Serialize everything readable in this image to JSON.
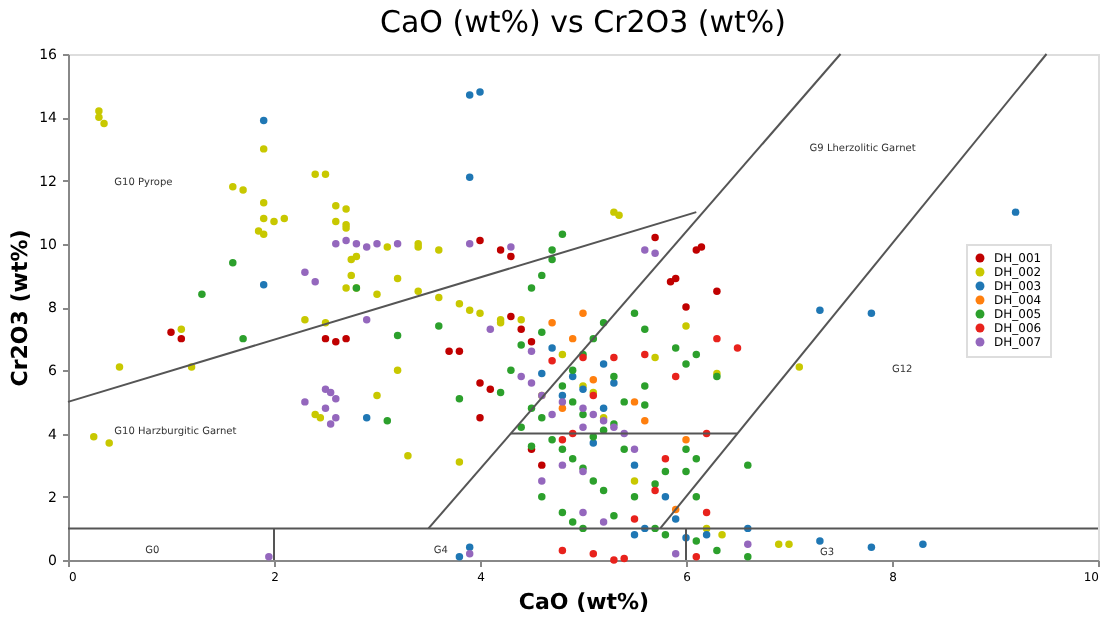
{
  "chart_data": {
    "type": "scatter",
    "title": "CaO (wt%) vs Cr2O3 (wt%)",
    "xlabel": "CaO (wt%)",
    "ylabel": "Cr2O3 (wt%)",
    "xlim": [
      0,
      10
    ],
    "ylim": [
      0,
      16
    ],
    "xticks": [
      0,
      2,
      4,
      6,
      8,
      10
    ],
    "yticks": [
      0,
      2,
      4,
      6,
      8,
      10,
      12,
      14,
      16
    ],
    "grid": false,
    "legend": "right",
    "marker": "circle",
    "annotations": [
      "G10 Pyrope",
      "G10 Harzburgitic Garnet",
      "G9 Lherzolitic Garnet",
      "G12",
      "G0",
      "G4",
      "G3"
    ],
    "series": [
      {
        "name": "DH_001",
        "color": "#c00000",
        "x": [
          1.0,
          1.1,
          2.5,
          2.6,
          2.7,
          4.0,
          4.2,
          4.3,
          5.7,
          6.1,
          6.15,
          5.9,
          5.85,
          6.3,
          6.0,
          4.3,
          4.4,
          4.5,
          3.7,
          3.8,
          4.0,
          4.1,
          4.0,
          4.5,
          4.6
        ],
        "values": [
          7.2,
          7.0,
          7.0,
          6.9,
          7.0,
          10.1,
          9.8,
          9.6,
          10.2,
          9.8,
          9.9,
          8.9,
          8.8,
          8.5,
          8.0,
          7.7,
          7.3,
          6.9,
          6.6,
          6.6,
          5.6,
          5.4,
          4.5,
          3.5,
          3.0
        ]
      },
      {
        "name": "DH_002",
        "color": "#c8c800",
        "x": [
          0.3,
          0.3,
          0.35,
          1.6,
          1.7,
          1.9,
          2.0,
          2.1,
          1.85,
          1.9,
          1.9,
          1.9,
          2.4,
          2.5,
          2.6,
          2.7,
          2.7,
          2.6,
          2.7,
          2.75,
          2.75,
          2.7,
          2.8,
          2.8,
          3.1,
          3.4,
          3.4,
          3.6,
          3.2,
          3.0,
          3.4,
          3.6,
          3.8,
          3.9,
          4.0,
          4.2,
          4.2,
          4.4,
          0.5,
          1.2,
          1.1,
          2.3,
          2.5,
          2.4,
          2.45,
          3.0,
          3.2,
          3.3,
          3.8,
          5.3,
          5.35,
          0.25,
          0.4,
          6.0,
          5.7,
          5.5,
          6.3,
          7.1,
          6.2,
          6.35,
          6.9,
          7.0,
          5.0,
          5.1,
          4.8,
          5.2,
          4.6
        ],
        "values": [
          14.2,
          14.0,
          13.8,
          11.8,
          11.7,
          10.8,
          10.7,
          10.8,
          10.4,
          10.3,
          11.3,
          13.0,
          12.2,
          12.2,
          11.2,
          11.1,
          10.6,
          10.7,
          10.5,
          9.5,
          9.0,
          8.6,
          8.6,
          9.6,
          9.9,
          10.0,
          9.9,
          9.8,
          8.9,
          8.4,
          8.5,
          8.3,
          8.1,
          7.9,
          7.8,
          7.6,
          7.5,
          7.6,
          6.1,
          6.1,
          7.3,
          7.6,
          7.5,
          4.6,
          4.5,
          5.2,
          6.0,
          3.3,
          3.1,
          11.0,
          10.9,
          3.9,
          3.7,
          7.4,
          6.4,
          2.5,
          5.9,
          6.1,
          1.0,
          0.8,
          0.5,
          0.5,
          5.5,
          5.3,
          6.5,
          4.5,
          5.2
        ]
      },
      {
        "name": "DH_003",
        "color": "#1f77b4",
        "x": [
          1.9,
          3.9,
          4.0,
          3.9,
          1.9,
          4.9,
          4.8,
          5.0,
          5.3,
          5.1,
          5.5,
          5.8,
          5.6,
          5.9,
          5.5,
          6.6,
          7.3,
          7.8,
          9.2,
          8.3,
          7.8,
          7.3,
          3.9,
          3.8,
          6.0,
          6.2,
          4.6,
          4.7,
          5.2,
          5.2,
          2.9
        ],
        "values": [
          13.9,
          14.7,
          14.8,
          12.1,
          8.7,
          5.8,
          5.2,
          5.4,
          5.6,
          3.7,
          3.0,
          2.0,
          1.0,
          1.3,
          0.8,
          1.0,
          7.9,
          7.8,
          11.0,
          0.5,
          0.4,
          0.6,
          0.4,
          0.1,
          0.7,
          0.8,
          5.9,
          6.7,
          6.2,
          4.8,
          4.5
        ]
      },
      {
        "name": "DH_004",
        "color": "#ff7f0e",
        "x": [
          4.7,
          4.9,
          5.1,
          5.5,
          5.6,
          4.8,
          6.0,
          5.9,
          5.0
        ],
        "values": [
          7.5,
          7.0,
          5.7,
          5.0,
          4.4,
          4.8,
          3.8,
          1.6,
          7.8
        ]
      },
      {
        "name": "DH_005",
        "color": "#2ca02c",
        "x": [
          1.6,
          1.3,
          1.7,
          2.8,
          3.2,
          4.7,
          4.8,
          4.7,
          4.6,
          4.5,
          4.6,
          4.4,
          4.3,
          4.2,
          4.5,
          4.6,
          4.4,
          4.7,
          4.8,
          4.9,
          5.0,
          5.1,
          5.2,
          4.6,
          4.8,
          4.9,
          5.0,
          5.3,
          5.5,
          5.7,
          5.8,
          5.1,
          5.2,
          5.3,
          5.0,
          4.9,
          4.8,
          4.9,
          5.0,
          5.1,
          5.2,
          5.5,
          5.6,
          5.9,
          6.0,
          6.1,
          5.6,
          5.4,
          5.3,
          5.6,
          6.0,
          6.1,
          6.1,
          5.7,
          5.8,
          6.1,
          6.3,
          6.6,
          6.6,
          6.0,
          6.3,
          3.6,
          3.8,
          3.1,
          4.5,
          5.4
        ],
        "values": [
          9.4,
          8.4,
          7.0,
          8.6,
          7.1,
          9.8,
          10.3,
          9.5,
          9.0,
          8.6,
          7.2,
          6.8,
          6.0,
          5.3,
          4.8,
          4.5,
          4.2,
          3.8,
          3.5,
          3.2,
          2.9,
          2.5,
          2.2,
          2.0,
          1.5,
          1.2,
          1.0,
          1.4,
          2.0,
          2.4,
          2.8,
          3.9,
          4.1,
          4.3,
          4.6,
          5.0,
          5.5,
          6.0,
          6.5,
          7.0,
          7.5,
          7.8,
          7.3,
          6.7,
          6.2,
          6.5,
          5.5,
          5.0,
          5.8,
          4.9,
          3.5,
          3.2,
          2.0,
          1.0,
          0.8,
          0.6,
          0.3,
          0.1,
          3.0,
          2.8,
          5.8,
          7.4,
          5.1,
          4.4,
          3.6,
          3.5
        ]
      },
      {
        "name": "DH_006",
        "color": "#e8221c",
        "x": [
          4.8,
          4.9,
          4.7,
          5.0,
          5.3,
          5.1,
          5.6,
          6.2,
          5.8,
          5.7,
          5.5,
          5.3,
          5.4,
          6.1,
          4.8,
          5.1,
          6.5,
          6.3,
          5.9,
          6.2
        ],
        "values": [
          3.8,
          4.0,
          6.3,
          6.4,
          6.4,
          5.2,
          6.5,
          4.0,
          3.2,
          2.2,
          1.3,
          0.0,
          0.05,
          0.1,
          0.3,
          0.2,
          6.7,
          7.0,
          5.8,
          1.5
        ]
      },
      {
        "name": "DH_007",
        "color": "#9467bd",
        "x": [
          2.6,
          2.7,
          2.8,
          2.9,
          3.0,
          3.2,
          2.3,
          2.4,
          3.9,
          4.3,
          2.5,
          2.55,
          2.6,
          2.5,
          2.6,
          2.55,
          2.3,
          4.1,
          4.5,
          4.4,
          4.5,
          4.6,
          4.8,
          5.0,
          5.1,
          5.2,
          5.3,
          5.4,
          5.0,
          4.7,
          4.8,
          5.0,
          4.6,
          5.0,
          5.2,
          3.9,
          1.95,
          5.9,
          5.5,
          5.6,
          5.7,
          6.6,
          2.9
        ],
        "values": [
          10.0,
          10.1,
          10.0,
          9.9,
          10.0,
          10.0,
          9.1,
          8.8,
          10.0,
          9.9,
          5.4,
          5.3,
          5.1,
          4.8,
          4.5,
          4.3,
          5.0,
          7.3,
          6.6,
          5.8,
          5.6,
          5.2,
          5.0,
          4.8,
          4.6,
          4.4,
          4.2,
          4.0,
          4.2,
          4.6,
          3.0,
          2.8,
          2.5,
          1.5,
          1.2,
          0.2,
          0.1,
          0.2,
          3.5,
          9.8,
          9.7,
          0.5,
          7.6
        ]
      },
      {
        "type": "line",
        "marker": "none",
        "color": "#555555",
        "x": [
          0,
          6.1
        ],
        "values": [
          5,
          11
        ]
      },
      {
        "type": "line",
        "marker": "none",
        "color": "#555555",
        "x": [
          3.5,
          7.5
        ],
        "values": [
          1,
          16
        ]
      },
      {
        "type": "line",
        "marker": "none",
        "color": "#555555",
        "x": [
          5.75,
          9.5
        ],
        "values": [
          1,
          16
        ]
      },
      {
        "type": "line",
        "marker": "none",
        "color": "#555555",
        "x": [
          4.3,
          6.5
        ],
        "values": [
          4,
          4
        ]
      },
      {
        "type": "line",
        "marker": "none",
        "color": "#555555",
        "x": [
          0,
          10
        ],
        "values": [
          1,
          1
        ]
      },
      {
        "type": "line",
        "marker": "none",
        "color": "#555555",
        "x": [
          2,
          2
        ],
        "values": [
          0,
          1
        ]
      },
      {
        "type": "line",
        "marker": "none",
        "color": "#555555",
        "x": [
          6,
          6
        ],
        "values": [
          0,
          1
        ]
      }
    ]
  }
}
